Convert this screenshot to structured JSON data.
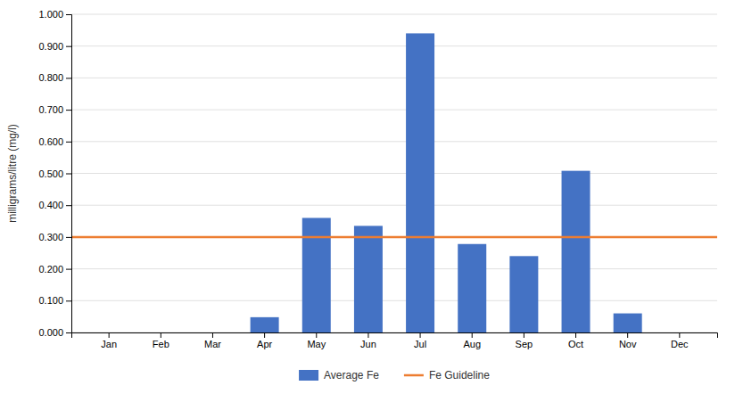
{
  "chart_data": {
    "type": "bar",
    "categories": [
      "Jan",
      "Feb",
      "Mar",
      "Apr",
      "May",
      "Jun",
      "Jul",
      "Aug",
      "Sep",
      "Oct",
      "Nov",
      "Dec"
    ],
    "series": [
      {
        "name": "Average Fe",
        "color": "#4472C4",
        "values": [
          0.0,
          0.0,
          0.0,
          0.048,
          0.36,
          0.335,
          0.94,
          0.278,
          0.24,
          0.508,
          0.06,
          0.0
        ]
      }
    ],
    "guideline": {
      "name": "Fe Guideline",
      "color": "#ED7D31",
      "value": 0.3
    },
    "ylabel": "milligrams/litre (mg/l)",
    "ylim": [
      0.0,
      1.0
    ],
    "yticks": [
      {
        "value": 0.0,
        "label": "0.000"
      },
      {
        "value": 0.1,
        "label": "0.100"
      },
      {
        "value": 0.2,
        "label": "0.200"
      },
      {
        "value": 0.3,
        "label": "0.300"
      },
      {
        "value": 0.4,
        "label": "0.400"
      },
      {
        "value": 0.5,
        "label": "0.500"
      },
      {
        "value": 0.6,
        "label": "0.600"
      },
      {
        "value": 0.7,
        "label": "0.700"
      },
      {
        "value": 0.8,
        "label": "0.800"
      },
      {
        "value": 0.9,
        "label": "0.900"
      },
      {
        "value": 1.0,
        "label": "1.000"
      }
    ],
    "grid": true,
    "legend": "bottom"
  }
}
